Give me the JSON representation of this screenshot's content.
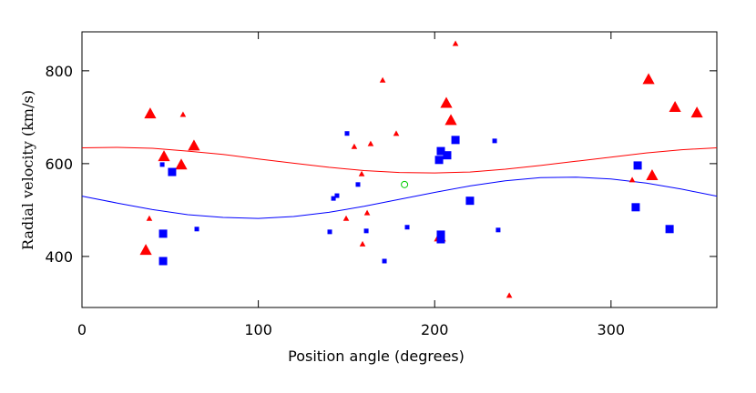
{
  "chart_data": {
    "type": "scatter",
    "xlabel": "Position angle (degrees)",
    "ylabel": "Radial velocity (km/s)",
    "xlim": [
      0,
      360
    ],
    "ylim": [
      290,
      884
    ],
    "xticks": [
      0,
      100,
      200,
      300
    ],
    "yticks": [
      400,
      600,
      800
    ],
    "lines": [
      {
        "color": "#ff0000",
        "x": [
          0,
          20,
          40,
          60,
          80,
          100,
          120,
          140,
          160,
          180,
          200,
          220,
          240,
          260,
          280,
          300,
          320,
          340,
          360
        ],
        "y": [
          634,
          635,
          633,
          627,
          620,
          610,
          601,
          592,
          585,
          581,
          580,
          582,
          588,
          596,
          605,
          614,
          623,
          630,
          634
        ]
      },
      {
        "color": "#0000ff",
        "x": [
          0,
          20,
          40,
          60,
          80,
          100,
          120,
          140,
          160,
          180,
          200,
          220,
          240,
          260,
          280,
          300,
          320,
          340,
          360
        ],
        "y": [
          530,
          515,
          501,
          490,
          484,
          482,
          486,
          495,
          508,
          523,
          538,
          552,
          563,
          570,
          571,
          567,
          558,
          545,
          530
        ]
      }
    ],
    "series": [
      {
        "color": "#ff0000",
        "marker": "triangle",
        "size": 12,
        "x": [
          38.7,
          46.5,
          63.5,
          56.3,
          36.2,
          206.6,
          209.2,
          203,
          321.3,
          336.3,
          348.7,
          323.3
        ],
        "y": [
          708,
          616,
          639,
          598,
          414,
          731,
          694,
          443,
          782,
          722,
          710,
          575
        ]
      },
      {
        "color": "#ff0000",
        "marker": "triangle",
        "size": 6,
        "x": [
          211.8,
          38.2,
          57.3,
          170.5,
          178.2,
          154.4,
          163.7,
          158.6,
          161.7,
          149.8,
          159.1,
          242.3,
          312
        ],
        "y": [
          859,
          482,
          706,
          780,
          665,
          637,
          643,
          578,
          494,
          482,
          427,
          316,
          565
        ]
      },
      {
        "color": "#0000ff",
        "marker": "square",
        "size": 9,
        "x": [
          51.1,
          46,
          46,
          203.5,
          202.5,
          207.1,
          211.8,
          220,
          203.5,
          203.5,
          315.1,
          314,
          333.2
        ],
        "y": [
          582,
          449,
          390,
          627,
          608,
          618,
          651,
          520,
          447,
          437,
          596,
          506,
          459
        ]
      },
      {
        "color": "#0000ff",
        "marker": "square",
        "size": 5,
        "x": [
          45.5,
          65.1,
          150.3,
          142.6,
          144.6,
          156.5,
          140.5,
          161.2,
          184.4,
          171.5,
          234,
          236
        ],
        "y": [
          598,
          459,
          665,
          525,
          531,
          555,
          453,
          455,
          463,
          390,
          649,
          457
        ]
      },
      {
        "color": "#00cc00",
        "marker": "circle",
        "size": 7,
        "x": [
          182.9
        ],
        "y": [
          555
        ]
      }
    ]
  }
}
